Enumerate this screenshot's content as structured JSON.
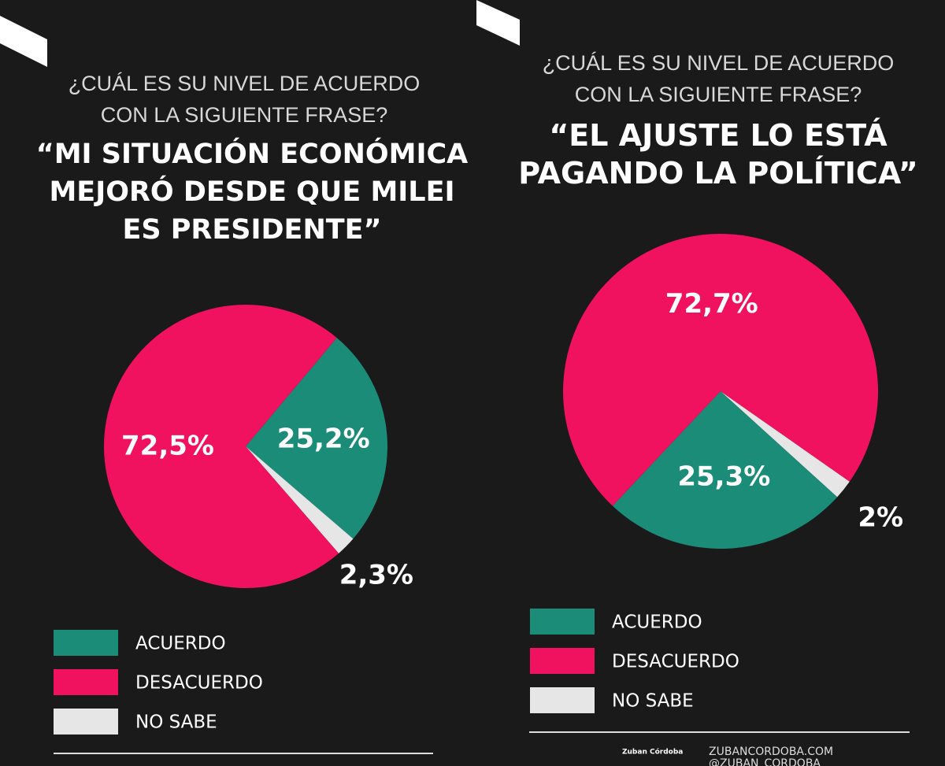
{
  "chart_data": [
    {
      "type": "pie",
      "subtitle": "¿CUÁL ES SU NIVEL DE ACUERDO CON LA SIGUIENTE FRASE?",
      "title": "“MI SITUACIÓN ECONÓMICA MEJORÓ DESDE QUE MILEI ES PRESIDENTE”",
      "categories": [
        "ACUERDO",
        "DESACUERDO",
        "NO SABE"
      ],
      "values": [
        25.2,
        72.5,
        2.3
      ],
      "value_labels": [
        "25,2%",
        "72,5%",
        "2,3%"
      ],
      "colors": [
        "#1a8c77",
        "#f0115f",
        "#e6e6e6"
      ]
    },
    {
      "type": "pie",
      "subtitle": "¿CUÁL ES SU NIVEL DE ACUERDO CON LA SIGUIENTE FRASE?",
      "title": "“EL AJUSTE LO ESTÁ PAGANDO LA POLÍTICA”",
      "categories": [
        "ACUERDO",
        "DESACUERDO",
        "NO SABE"
      ],
      "values": [
        25.3,
        72.7,
        2
      ],
      "value_labels": [
        "25,3%",
        "72,7%",
        "2%"
      ],
      "colors": [
        "#1a8c77",
        "#f0115f",
        "#e6e6e6"
      ]
    }
  ],
  "footer": {
    "logo": "Zuban Córdoba",
    "website": "ZUBANCORDOBA.COM",
    "handle": "@ZUBAN_CORDOBA"
  }
}
